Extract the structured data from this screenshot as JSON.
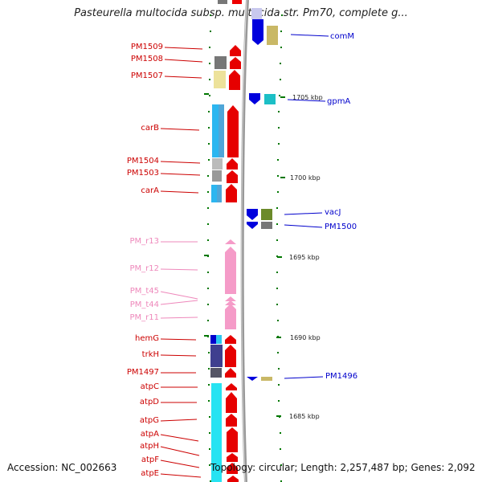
{
  "title": "Pasteurella multocida subsp. multocida str. Pm70, complete g...",
  "accession": "Accession: NC_002663",
  "topology": "Topology: circular; Length: 2,257,487 bp; Genes: 2,092",
  "colors": {
    "forward_label": "#cc0000",
    "rna_label": "#ee88bb",
    "reverse_label": "#0000cc",
    "tick": "#007700",
    "backbone": "#999999"
  },
  "kbp_ticks": [
    {
      "label": "1705 kbp",
      "pos": 1705
    },
    {
      "label": "1700 kbp",
      "pos": 1700
    },
    {
      "label": "1695 kbp",
      "pos": 1695
    },
    {
      "label": "1690 kbp",
      "pos": 1690
    },
    {
      "label": "1685 kbp",
      "pos": 1685
    }
  ],
  "forward_labels": [
    {
      "text": "PM1509",
      "type": "gene"
    },
    {
      "text": "PM1508",
      "type": "gene"
    },
    {
      "text": "PM1507",
      "type": "gene"
    },
    {
      "text": "carB",
      "type": "gene"
    },
    {
      "text": "PM1504",
      "type": "gene"
    },
    {
      "text": "PM1503",
      "type": "gene"
    },
    {
      "text": "carA",
      "type": "gene"
    },
    {
      "text": "PM_r13",
      "type": "rna"
    },
    {
      "text": "PM_r12",
      "type": "rna"
    },
    {
      "text": "PM_t45",
      "type": "rna"
    },
    {
      "text": "PM_t44",
      "type": "rna"
    },
    {
      "text": "PM_r11",
      "type": "rna"
    },
    {
      "text": "hemG",
      "type": "gene"
    },
    {
      "text": "trkH",
      "type": "gene"
    },
    {
      "text": "PM1497",
      "type": "gene"
    },
    {
      "text": "atpC",
      "type": "gene"
    },
    {
      "text": "atpD",
      "type": "gene"
    },
    {
      "text": "atpG",
      "type": "gene"
    },
    {
      "text": "atpA",
      "type": "gene"
    },
    {
      "text": "atpH",
      "type": "gene"
    },
    {
      "text": "atpF",
      "type": "gene"
    },
    {
      "text": "atpE",
      "type": "gene"
    }
  ],
  "reverse_labels": [
    {
      "text": "comM"
    },
    {
      "text": "gpmA"
    },
    {
      "text": "vacJ"
    },
    {
      "text": "PM1500"
    },
    {
      "text": "PM1496"
    }
  ]
}
